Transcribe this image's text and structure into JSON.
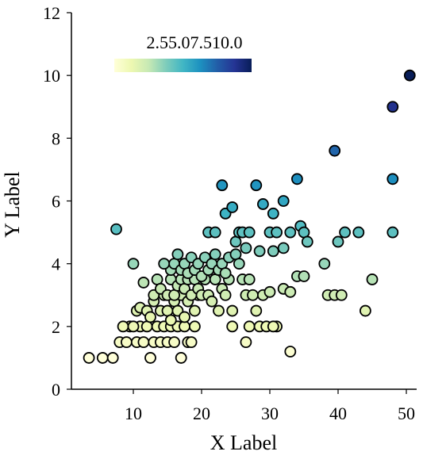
{
  "chart_data": {
    "type": "scatter",
    "title": "",
    "xlabel": "X Label",
    "ylabel": "Y Label",
    "xlim": [
      2,
      52
    ],
    "ylim": [
      0,
      12
    ],
    "xticks": [
      10,
      20,
      30,
      40,
      50
    ],
    "yticks": [
      0,
      2,
      4,
      6,
      8,
      10,
      12
    ],
    "xtick_labels": [
      "10",
      "20",
      "30",
      "40",
      "50"
    ],
    "ytick_labels": [
      "0",
      "2",
      "4",
      "6",
      "8",
      "10",
      "12"
    ],
    "grid": false,
    "colormap": "YlGnBu",
    "color_value": "y",
    "colorbar": {
      "placement": "top-left, horizontal",
      "range": [
        1,
        10
      ],
      "tick_values": [
        2.5,
        5.0,
        7.5,
        10.0
      ],
      "tick_text": "2.55.07.510.0",
      "colors": [
        "#ffffd9",
        "#edf8b1",
        "#c7e9b4",
        "#7fcdbb",
        "#41b6c4",
        "#1d91c0",
        "#225ea8",
        "#253494",
        "#081d58"
      ]
    },
    "points": [
      [
        3.5,
        1.0
      ],
      [
        5.5,
        1.0
      ],
      [
        7.0,
        1.0
      ],
      [
        8.0,
        1.5
      ],
      [
        9.0,
        1.5
      ],
      [
        9.5,
        2.0
      ],
      [
        10.5,
        1.5
      ],
      [
        11.0,
        2.0
      ],
      [
        11.5,
        1.5
      ],
      [
        12.0,
        2.0
      ],
      [
        12.5,
        1.0
      ],
      [
        13.0,
        1.5
      ],
      [
        13.5,
        2.0
      ],
      [
        14.0,
        1.5
      ],
      [
        14.5,
        2.0
      ],
      [
        15.0,
        1.5
      ],
      [
        15.5,
        2.0
      ],
      [
        16.0,
        1.5
      ],
      [
        16.5,
        2.0
      ],
      [
        17.0,
        1.0
      ],
      [
        17.5,
        2.0
      ],
      [
        18.0,
        1.5
      ],
      [
        18.5,
        1.5
      ],
      [
        19.0,
        2.0
      ],
      [
        8.5,
        2.0
      ],
      [
        10.0,
        2.0
      ],
      [
        10.5,
        2.5
      ],
      [
        11.0,
        2.6
      ],
      [
        12.0,
        2.5
      ],
      [
        12.5,
        2.3
      ],
      [
        13.0,
        2.8
      ],
      [
        14.0,
        2.5
      ],
      [
        14.5,
        3.0
      ],
      [
        15.0,
        2.5
      ],
      [
        15.5,
        2.2
      ],
      [
        16.0,
        2.8
      ],
      [
        16.5,
        2.5
      ],
      [
        17.0,
        3.0
      ],
      [
        17.5,
        2.3
      ],
      [
        18.0,
        2.8
      ],
      [
        19.0,
        2.5
      ],
      [
        19.5,
        3.0
      ],
      [
        11.5,
        3.4
      ],
      [
        13.0,
        3.0
      ],
      [
        13.5,
        3.5
      ],
      [
        14.0,
        3.2
      ],
      [
        15.0,
        3.0
      ],
      [
        15.5,
        3.5
      ],
      [
        16.0,
        3.0
      ],
      [
        16.5,
        3.3
      ],
      [
        17.0,
        3.5
      ],
      [
        17.5,
        3.2
      ],
      [
        18.0,
        3.5
      ],
      [
        18.5,
        3.0
      ],
      [
        19.0,
        3.5
      ],
      [
        19.5,
        3.2
      ],
      [
        20.0,
        3.0
      ],
      [
        20.5,
        3.5
      ],
      [
        21.0,
        3.0
      ],
      [
        21.5,
        2.8
      ],
      [
        22.0,
        3.5
      ],
      [
        22.5,
        2.5
      ],
      [
        23.0,
        3.2
      ],
      [
        23.5,
        3.0
      ],
      [
        24.0,
        3.5
      ],
      [
        24.5,
        2.5
      ],
      [
        15.5,
        3.8
      ],
      [
        16.0,
        4.0
      ],
      [
        16.5,
        4.3
      ],
      [
        17.0,
        3.8
      ],
      [
        17.5,
        4.0
      ],
      [
        18.0,
        3.7
      ],
      [
        18.5,
        4.2
      ],
      [
        19.0,
        3.8
      ],
      [
        19.5,
        4.0
      ],
      [
        20.0,
        3.6
      ],
      [
        20.5,
        4.2
      ],
      [
        21.0,
        3.8
      ],
      [
        21.5,
        4.0
      ],
      [
        22.0,
        4.3
      ],
      [
        22.5,
        3.8
      ],
      [
        23.0,
        4.0
      ],
      [
        23.5,
        3.7
      ],
      [
        24.0,
        4.2
      ],
      [
        7.5,
        5.1
      ],
      [
        10.0,
        4.0
      ],
      [
        14.5,
        4.0
      ],
      [
        25.0,
        4.3
      ],
      [
        25.5,
        4.0
      ],
      [
        26.0,
        3.5
      ],
      [
        26.5,
        3.0
      ],
      [
        27.0,
        3.5
      ],
      [
        27.5,
        3.0
      ],
      [
        28.0,
        2.5
      ],
      [
        29.0,
        3.0
      ],
      [
        30.0,
        3.1
      ],
      [
        31.0,
        2.0
      ],
      [
        32.0,
        3.2
      ],
      [
        33.0,
        3.1
      ],
      [
        34.0,
        3.6
      ],
      [
        35.0,
        3.6
      ],
      [
        38.5,
        3.0
      ],
      [
        39.5,
        3.0
      ],
      [
        40.5,
        3.0
      ],
      [
        44.0,
        2.5
      ],
      [
        45.0,
        3.5
      ],
      [
        38.0,
        4.0
      ],
      [
        33.0,
        1.2
      ],
      [
        26.5,
        1.5
      ],
      [
        27.0,
        2.0
      ],
      [
        28.5,
        2.0
      ],
      [
        29.5,
        2.0
      ],
      [
        30.5,
        2.0
      ],
      [
        24.5,
        2.0
      ],
      [
        21.0,
        5.0
      ],
      [
        22.0,
        5.0
      ],
      [
        23.5,
        5.6
      ],
      [
        24.5,
        5.8
      ],
      [
        25.0,
        4.7
      ],
      [
        25.5,
        5.0
      ],
      [
        26.0,
        5.0
      ],
      [
        27.0,
        5.0
      ],
      [
        28.0,
        6.5
      ],
      [
        29.0,
        5.9
      ],
      [
        30.0,
        5.0
      ],
      [
        30.5,
        5.6
      ],
      [
        31.0,
        5.0
      ],
      [
        32.0,
        6.0
      ],
      [
        33.0,
        5.0
      ],
      [
        34.5,
        5.2
      ],
      [
        35.0,
        5.0
      ],
      [
        35.5,
        4.7
      ],
      [
        23.0,
        6.5
      ],
      [
        26.5,
        4.5
      ],
      [
        28.5,
        4.4
      ],
      [
        32.0,
        4.5
      ],
      [
        30.5,
        4.4
      ],
      [
        34.0,
        6.7
      ],
      [
        40.0,
        4.7
      ],
      [
        41.0,
        5.0
      ],
      [
        43.0,
        5.0
      ],
      [
        48.0,
        5.0
      ],
      [
        48.0,
        6.7
      ],
      [
        39.5,
        7.6
      ],
      [
        48.0,
        9.0
      ],
      [
        50.5,
        10.0
      ]
    ]
  }
}
